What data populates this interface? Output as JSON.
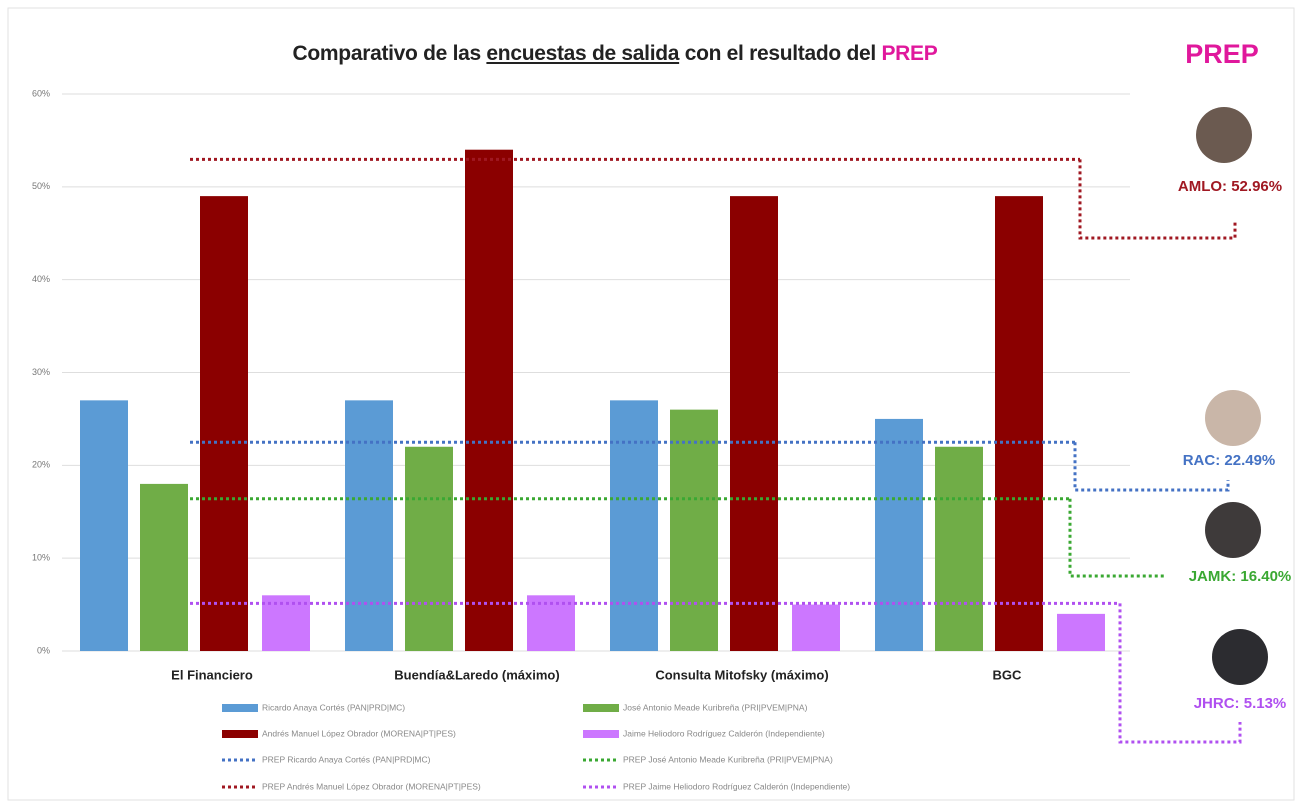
{
  "chart_data": {
    "type": "bar",
    "title": [
      "Comparativo de las",
      "encuestas de salida",
      "con el resultado del",
      "PREP"
    ],
    "categories": [
      "El Financiero",
      "Buendía&Laredo (máximo)",
      "Consulta Mitofsky (máximo)",
      "BGC"
    ],
    "series": [
      {
        "name": "Ricardo Anaya Cortés (PAN|PRD|MC)",
        "color": "#5b9bd5",
        "values": [
          27,
          27,
          27,
          25
        ]
      },
      {
        "name": "José Antonio Meade Kuribreña (PRI|PVEM|PNA)",
        "color": "#70ad47",
        "values": [
          18,
          22,
          26,
          22
        ]
      },
      {
        "name": "Andrés Manuel López Obrador (MORENA|PT|PES)",
        "color": "#8b0000",
        "values": [
          49,
          54,
          49,
          49
        ]
      },
      {
        "name": "Jaime Heliodoro Rodríguez Calderón (Independiente)",
        "color": "#cc77ff",
        "values": [
          6,
          6,
          5,
          4
        ]
      }
    ],
    "prep_title": "PREP",
    "prep": [
      {
        "name": "PREP Ricardo Anaya Cortés (PAN|PRD|MC)",
        "color": "#4472c4",
        "value": 22.49,
        "value_label": "RAC: 22.49%"
      },
      {
        "name": "PREP José Antonio Meade Kuribreña (PRI|PVEM|PNA)",
        "color": "#3aa832",
        "value": 16.4,
        "value_label": "JAMK: 16.40%"
      },
      {
        "name": "PREP Andrés Manuel López Obrador (MORENA|PT|PES)",
        "color": "#a01822",
        "value": 52.96,
        "value_label": "AMLO: 52.96%"
      },
      {
        "name": "PREP Jaime Heliodoro Rodríguez Calderón (Independiente)",
        "color": "#b050f0",
        "value": 5.13,
        "value_label": "JHRC: 5.13%"
      }
    ],
    "ylim": [
      0,
      60
    ],
    "yticks": [
      {
        "value": 0,
        "label": "0%"
      },
      {
        "value": 10,
        "label": "10%"
      },
      {
        "value": 20,
        "label": "20%"
      },
      {
        "value": 30,
        "label": "30%"
      },
      {
        "value": 40,
        "label": "40%"
      },
      {
        "value": 50,
        "label": "50%"
      },
      {
        "value": 60,
        "label": "60%"
      }
    ],
    "grid": true
  }
}
